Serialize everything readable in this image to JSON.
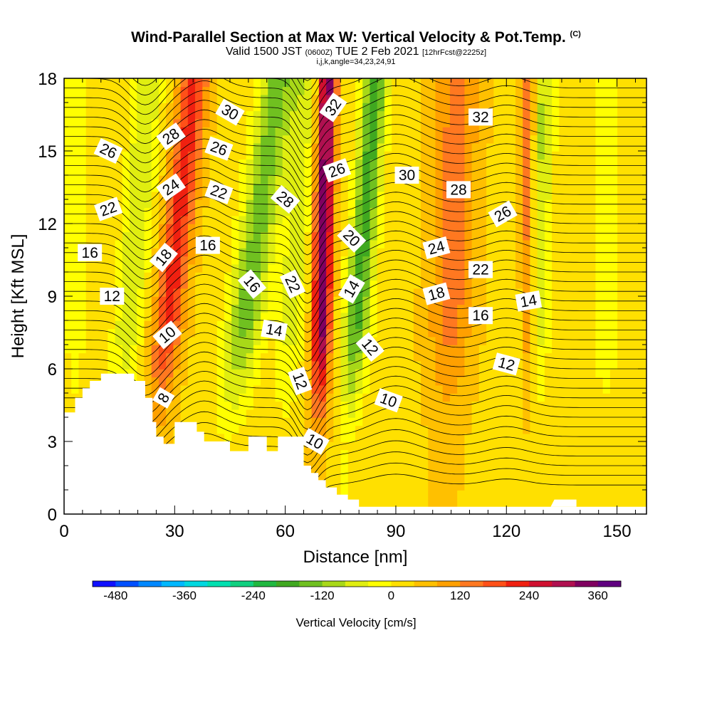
{
  "header": {
    "title": "Wind-Parallel Section at Max W: Vertical Velocity & Pot.Temp.",
    "copyright": "(C)",
    "valid_prefix": "Valid 1500 JST",
    "valid_zulu": "(0600Z)",
    "valid_date": "TUE 2 Feb 2021",
    "forecast": "[12hrFcst@2225z]",
    "indices": "i,j,k,angle=34,23,24,91"
  },
  "chart_data": {
    "type": "heatmap",
    "xlabel": "Distance [nm]",
    "ylabel": "Height [Kft MSL]",
    "xlim": [
      0,
      158
    ],
    "ylim": [
      0,
      18
    ],
    "xticks": [
      "0",
      "30",
      "60",
      "90",
      "120",
      "150"
    ],
    "yticks": [
      "0",
      "3",
      "6",
      "9",
      "12",
      "15",
      "18"
    ],
    "colorbar": {
      "title": "Vertical Velocity [cm/s]",
      "labels": [
        "-480",
        "-360",
        "-240",
        "-120",
        "0",
        "120",
        "240",
        "360"
      ],
      "colors": [
        "#1010ff",
        "#0050ff",
        "#0088ff",
        "#00b8ff",
        "#00d8e0",
        "#00e0b0",
        "#10d080",
        "#20b840",
        "#40a820",
        "#70c020",
        "#a8d818",
        "#e0ee10",
        "#ffff00",
        "#ffe000",
        "#ffc000",
        "#ffa000",
        "#ff7820",
        "#ff5018",
        "#f02010",
        "#d01030",
        "#b01050",
        "#800060",
        "#600080"
      ]
    },
    "vertical_velocity_features": [
      {
        "x": 3,
        "amp": -60,
        "width": 3,
        "lean": 0.0
      },
      {
        "x": 18,
        "amp": -110,
        "width": 4,
        "lean": 0.55
      },
      {
        "x": 29,
        "amp": 190,
        "width": 4,
        "lean": 0.7
      },
      {
        "x": 50,
        "amp": -170,
        "width": 5,
        "lean": 0.9
      },
      {
        "x": 62,
        "amp": -90,
        "width": 4,
        "lean": 0.4
      },
      {
        "x": 70,
        "amp": 330,
        "width": 2.5,
        "lean": 0.15
      },
      {
        "x": 80,
        "amp": -210,
        "width": 3.5,
        "lean": 0.5
      },
      {
        "x": 105,
        "amp": 110,
        "width": 6,
        "lean": 0.2
      },
      {
        "x": 128,
        "amp": -120,
        "width": 3.5,
        "lean": 0.2
      },
      {
        "x": 126,
        "amp": 160,
        "width": 2,
        "lean": 0.0
      },
      {
        "x": 147,
        "amp": -60,
        "width": 4,
        "lean": 0.0
      }
    ],
    "terrain": [
      [
        0,
        4.2
      ],
      [
        3,
        4.2
      ],
      [
        3,
        4.8
      ],
      [
        5,
        4.8
      ],
      [
        5,
        5.2
      ],
      [
        7,
        5.2
      ],
      [
        7,
        5.5
      ],
      [
        10,
        5.5
      ],
      [
        10,
        5.8
      ],
      [
        19,
        5.8
      ],
      [
        19,
        5.5
      ],
      [
        22,
        5.5
      ],
      [
        22,
        4.8
      ],
      [
        24,
        4.8
      ],
      [
        24,
        3.8
      ],
      [
        25,
        3.8
      ],
      [
        25,
        3.2
      ],
      [
        27,
        3.2
      ],
      [
        27,
        2.9
      ],
      [
        30,
        2.9
      ],
      [
        30,
        3.8
      ],
      [
        36,
        3.8
      ],
      [
        36,
        3.4
      ],
      [
        38,
        3.4
      ],
      [
        38,
        3.0
      ],
      [
        45,
        3.0
      ],
      [
        45,
        2.6
      ],
      [
        50,
        2.6
      ],
      [
        50,
        3.2
      ],
      [
        55,
        3.2
      ],
      [
        55,
        2.6
      ],
      [
        58,
        2.6
      ],
      [
        58,
        3.2
      ],
      [
        65,
        3.2
      ],
      [
        65,
        2.0
      ],
      [
        67,
        2.0
      ],
      [
        67,
        1.7
      ],
      [
        69,
        1.7
      ],
      [
        69,
        1.4
      ],
      [
        71,
        1.4
      ],
      [
        71,
        1.1
      ],
      [
        74,
        1.1
      ],
      [
        74,
        0.8
      ],
      [
        77,
        0.8
      ],
      [
        77,
        0.6
      ],
      [
        80,
        0.6
      ],
      [
        80,
        0.3
      ],
      [
        158,
        0.3
      ]
    ],
    "terrain_bumps": [
      [
        132,
        0.3
      ],
      [
        133,
        0.6
      ],
      [
        139,
        0.6
      ],
      [
        139,
        0.3
      ]
    ],
    "theta_contour_labels": [
      {
        "text": "30",
        "x": 45,
        "y": 16.6,
        "angle": 30
      },
      {
        "text": "32",
        "x": 73,
        "y": 16.8,
        "angle": -55
      },
      {
        "text": "32",
        "x": 113,
        "y": 16.4,
        "angle": 0
      },
      {
        "text": "28",
        "x": 29,
        "y": 15.6,
        "angle": -35
      },
      {
        "text": "26",
        "x": 12,
        "y": 15.0,
        "angle": 25
      },
      {
        "text": "26",
        "x": 42,
        "y": 15.1,
        "angle": 20
      },
      {
        "text": "26",
        "x": 74,
        "y": 14.2,
        "angle": -20
      },
      {
        "text": "30",
        "x": 93,
        "y": 14.0,
        "angle": 0
      },
      {
        "text": "28",
        "x": 107,
        "y": 13.4,
        "angle": 0
      },
      {
        "text": "24",
        "x": 29,
        "y": 13.5,
        "angle": -35
      },
      {
        "text": "22",
        "x": 42,
        "y": 13.3,
        "angle": 20
      },
      {
        "text": "28",
        "x": 60,
        "y": 13.0,
        "angle": 40
      },
      {
        "text": "22",
        "x": 12,
        "y": 12.6,
        "angle": -20
      },
      {
        "text": "26",
        "x": 119,
        "y": 12.4,
        "angle": -30
      },
      {
        "text": "20",
        "x": 78,
        "y": 11.4,
        "angle": 45
      },
      {
        "text": "16",
        "x": 39,
        "y": 11.1,
        "angle": 0
      },
      {
        "text": "24",
        "x": 101,
        "y": 11.0,
        "angle": -15
      },
      {
        "text": "16",
        "x": 7,
        "y": 10.8,
        "angle": 0
      },
      {
        "text": "18",
        "x": 27,
        "y": 10.6,
        "angle": -50
      },
      {
        "text": "22",
        "x": 113,
        "y": 10.1,
        "angle": 0
      },
      {
        "text": "16",
        "x": 51,
        "y": 9.5,
        "angle": 50
      },
      {
        "text": "22",
        "x": 62,
        "y": 9.5,
        "angle": 65
      },
      {
        "text": "14",
        "x": 78,
        "y": 9.3,
        "angle": -60
      },
      {
        "text": "18",
        "x": 101,
        "y": 9.1,
        "angle": -15
      },
      {
        "text": "12",
        "x": 13,
        "y": 9.0,
        "angle": 0
      },
      {
        "text": "14",
        "x": 126,
        "y": 8.8,
        "angle": -10
      },
      {
        "text": "16",
        "x": 113,
        "y": 8.2,
        "angle": 0
      },
      {
        "text": "14",
        "x": 57,
        "y": 7.6,
        "angle": 10
      },
      {
        "text": "10",
        "x": 28,
        "y": 7.4,
        "angle": -40
      },
      {
        "text": "12",
        "x": 83,
        "y": 6.9,
        "angle": 50
      },
      {
        "text": "12",
        "x": 120,
        "y": 6.2,
        "angle": 15
      },
      {
        "text": "12",
        "x": 64,
        "y": 5.5,
        "angle": 70
      },
      {
        "text": "10",
        "x": 88,
        "y": 4.7,
        "angle": 20
      },
      {
        "text": "8",
        "x": 27,
        "y": 4.8,
        "angle": -60
      },
      {
        "text": "10",
        "x": 68,
        "y": 3.0,
        "angle": 30
      }
    ]
  }
}
